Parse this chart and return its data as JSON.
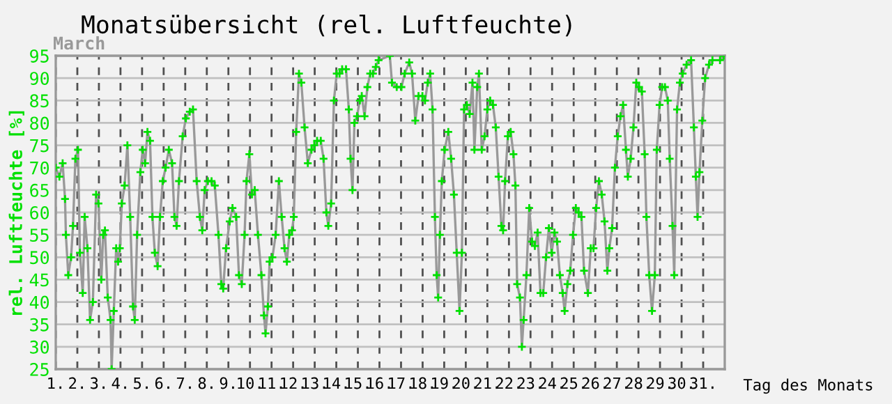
{
  "chart_data": {
    "type": "line",
    "title": "Monatsübersicht (rel. Luftfeuchte)",
    "subtitle": "March",
    "ylabel": "rel. Luftfeuchte [%]",
    "xlabel": "Tag des Monats",
    "xlim": [
      1,
      32
    ],
    "xticks": [
      {
        "value": 1,
        "label": "1."
      },
      {
        "value": 2,
        "label": "2."
      },
      {
        "value": 3,
        "label": "3."
      },
      {
        "value": 4,
        "label": "4."
      },
      {
        "value": 5,
        "label": "5."
      },
      {
        "value": 6,
        "label": "6."
      },
      {
        "value": 7,
        "label": "7."
      },
      {
        "value": 8,
        "label": "8."
      },
      {
        "value": 9,
        "label": "9."
      },
      {
        "value": 10,
        "label": "10."
      },
      {
        "value": 11,
        "label": "11."
      },
      {
        "value": 12,
        "label": "12."
      },
      {
        "value": 13,
        "label": "13."
      },
      {
        "value": 14,
        "label": "14."
      },
      {
        "value": 15,
        "label": "15."
      },
      {
        "value": 16,
        "label": "16."
      },
      {
        "value": 17,
        "label": "17."
      },
      {
        "value": 18,
        "label": "18."
      },
      {
        "value": 19,
        "label": "19."
      },
      {
        "value": 20,
        "label": "20."
      },
      {
        "value": 21,
        "label": "21."
      },
      {
        "value": 22,
        "label": "22."
      },
      {
        "value": 23,
        "label": "23."
      },
      {
        "value": 24,
        "label": "24."
      },
      {
        "value": 25,
        "label": "25."
      },
      {
        "value": 26,
        "label": "26."
      },
      {
        "value": 27,
        "label": "27."
      },
      {
        "value": 28,
        "label": "28."
      },
      {
        "value": 29,
        "label": "29."
      },
      {
        "value": 30,
        "label": "30."
      },
      {
        "value": 31,
        "label": "31."
      }
    ],
    "ylim": [
      25,
      95
    ],
    "yticks": [
      25,
      30,
      35,
      40,
      45,
      50,
      55,
      60,
      65,
      70,
      75,
      80,
      85,
      90,
      95
    ],
    "grid": true,
    "marker": "cross",
    "line_style": "solid",
    "series": [
      {
        "color": "#999999",
        "x": [
          1.0,
          1.17,
          1.32,
          1.43,
          1.47,
          1.58,
          1.71,
          1.8,
          1.91,
          2.03,
          2.12,
          2.25,
          2.34,
          2.47,
          2.59,
          2.72,
          2.87,
          2.98,
          3.11,
          3.2,
          3.28,
          3.41,
          3.54,
          3.59,
          3.69,
          3.8,
          3.89,
          3.97,
          4.06,
          4.19,
          4.32,
          4.45,
          4.58,
          4.66,
          4.77,
          4.92,
          5.03,
          5.14,
          5.25,
          5.37,
          5.48,
          5.59,
          5.72,
          5.83,
          5.96,
          6.09,
          6.24,
          6.39,
          6.5,
          6.6,
          6.71,
          6.88,
          7.03,
          7.21,
          7.36,
          7.53,
          7.68,
          7.79,
          7.9,
          8.05,
          8.22,
          8.37,
          8.54,
          8.67,
          8.76,
          8.89,
          9.06,
          9.19,
          9.36,
          9.49,
          9.62,
          9.75,
          9.84,
          9.97,
          10.09,
          10.22,
          10.37,
          10.53,
          10.65,
          10.72,
          10.83,
          10.91,
          11.04,
          11.19,
          11.34,
          11.47,
          11.6,
          11.71,
          11.82,
          11.95,
          12.03,
          12.14,
          12.27,
          12.38,
          12.53,
          12.68,
          12.85,
          12.98,
          13.11,
          13.28,
          13.41,
          13.54,
          13.63,
          13.76,
          13.89,
          14.02,
          14.15,
          14.27,
          14.45,
          14.58,
          14.66,
          14.75,
          14.84,
          14.96,
          15.09,
          15.18,
          15.31,
          15.44,
          15.57,
          15.7,
          15.83,
          15.96,
          16.48,
          16.58,
          16.8,
          17.02,
          17.17,
          17.38,
          17.51,
          17.66,
          17.81,
          17.99,
          18.11,
          18.24,
          18.35,
          18.46,
          18.57,
          18.65,
          18.72,
          18.8,
          18.89,
          19.02,
          19.19,
          19.32,
          19.45,
          19.58,
          19.71,
          19.82,
          19.92,
          20.05,
          20.18,
          20.31,
          20.4,
          20.53,
          20.61,
          20.74,
          20.87,
          21.0,
          21.13,
          21.26,
          21.39,
          21.52,
          21.65,
          21.73,
          21.82,
          21.95,
          22.08,
          22.21,
          22.3,
          22.38,
          22.51,
          22.6,
          22.68,
          22.81,
          22.94,
          23.07,
          23.2,
          23.33,
          23.46,
          23.59,
          23.72,
          23.85,
          23.98,
          24.11,
          24.23,
          24.36,
          24.49,
          24.58,
          24.71,
          24.84,
          24.97,
          25.1,
          25.23,
          25.36,
          25.48,
          25.66,
          25.79,
          25.92,
          26.04,
          26.17,
          26.3,
          26.43,
          26.56,
          26.65,
          26.78,
          26.91,
          27.04,
          27.17,
          27.29,
          27.42,
          27.51,
          27.64,
          27.77,
          27.9,
          28.03,
          28.16,
          28.29,
          28.37,
          28.5,
          28.63,
          28.76,
          28.85,
          28.98,
          29.1,
          29.23,
          29.36,
          29.45,
          29.58,
          29.66,
          29.79,
          29.92,
          30.05,
          30.23,
          30.44,
          30.57,
          30.66,
          30.74,
          30.83,
          30.96,
          31.09,
          31.27,
          31.43,
          31.78,
          31.95
        ],
        "values": [
          70,
          68,
          71,
          63,
          55,
          46,
          50,
          57,
          72,
          74,
          51,
          42,
          59,
          52,
          36,
          40,
          64,
          62,
          45,
          55,
          56,
          41,
          36,
          25,
          38,
          52,
          49,
          52,
          62,
          66,
          75,
          59,
          39,
          36,
          55,
          69,
          74,
          71,
          78,
          76,
          59,
          51,
          48,
          59,
          67,
          70,
          74,
          71,
          59,
          57,
          67,
          77,
          81,
          82.5,
          83,
          67,
          59,
          56,
          65,
          67,
          67,
          66,
          55,
          44,
          43,
          52,
          58,
          61,
          59,
          46,
          44,
          55,
          67,
          73,
          64,
          65,
          55,
          46,
          37,
          33,
          39,
          49,
          50,
          55,
          67,
          59,
          52,
          49,
          55,
          56,
          59,
          78,
          91,
          89,
          79,
          71,
          74,
          75,
          76,
          76,
          72,
          60,
          57,
          62,
          85,
          91,
          91,
          92,
          92,
          83,
          72,
          65,
          80,
          81.5,
          85,
          86,
          81.5,
          88,
          91,
          91,
          92.5,
          94,
          95,
          89,
          88,
          88,
          91,
          93.5,
          91,
          80.5,
          86,
          86,
          85,
          89,
          91,
          83,
          59,
          46,
          41,
          55,
          67,
          74,
          78,
          72,
          64,
          51,
          38,
          51,
          83,
          84,
          82,
          89,
          74,
          88,
          91,
          74,
          77,
          83,
          85,
          84,
          79,
          68,
          57,
          56,
          67,
          77,
          78,
          73,
          66,
          44,
          41,
          30,
          36,
          46,
          61,
          53.5,
          52.5,
          55.5,
          42,
          42,
          50,
          56.5,
          51,
          55.5,
          53.5,
          46,
          42,
          38,
          44,
          47,
          55,
          61,
          60,
          59,
          47,
          42,
          52,
          52,
          61,
          67,
          64,
          58,
          47,
          52,
          56.5,
          70,
          77,
          81.5,
          84,
          74,
          68,
          72,
          79,
          89,
          88,
          87,
          73,
          59,
          46,
          38,
          46,
          74,
          84,
          88,
          88,
          85,
          72,
          57,
          46,
          83,
          89,
          91,
          93,
          94,
          79,
          68,
          59,
          69,
          80.5,
          90,
          93,
          94,
          94,
          95
        ]
      }
    ]
  }
}
